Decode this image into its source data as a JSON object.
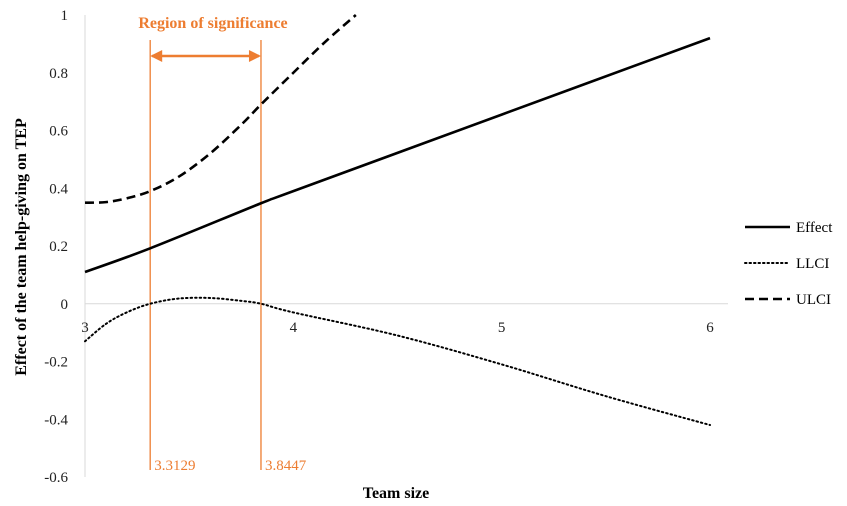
{
  "chart_data": {
    "type": "line",
    "title": "",
    "xlabel": "Team size",
    "ylabel": "Effect of the team help-giving on TEP",
    "xlim": [
      3,
      6
    ],
    "ylim": [
      -0.6,
      1
    ],
    "x_ticks": [
      "3",
      "4",
      "5",
      "6"
    ],
    "y_ticks": [
      "-0.6",
      "-0.4",
      "-0.2",
      "0",
      "0.2",
      "0.4",
      "0.6",
      "0.8",
      "1"
    ],
    "grid": false,
    "legend": "right",
    "series": [
      {
        "name": "Effect",
        "style": "solid",
        "x": [
          3.0,
          3.3129,
          3.8447,
          4.0,
          5.0,
          6.0
        ],
        "y": [
          0.11,
          0.192,
          0.348,
          0.39,
          0.655,
          0.92
        ]
      },
      {
        "name": "LLCI",
        "style": "dotted",
        "x": [
          3.0,
          3.1,
          3.2,
          3.3129,
          3.45,
          3.6,
          3.75,
          3.8447,
          4.0,
          4.5,
          5.0,
          5.5,
          6.0
        ],
        "y": [
          -0.13,
          -0.07,
          -0.03,
          0.0,
          0.018,
          0.02,
          0.01,
          0.0,
          -0.03,
          -0.11,
          -0.21,
          -0.32,
          -0.42
        ]
      },
      {
        "name": "ULCI",
        "style": "dashed",
        "x": [
          3.0,
          3.1,
          3.2,
          3.3129,
          3.45,
          3.6,
          3.75,
          3.8447,
          4.0,
          4.15,
          4.3
        ],
        "y": [
          0.35,
          0.352,
          0.365,
          0.39,
          0.44,
          0.52,
          0.62,
          0.69,
          0.8,
          0.905,
          1.0
        ]
      }
    ],
    "region": {
      "label": "Region of significance",
      "lower_label": "3.3129",
      "upper_label": "3.8447",
      "lower": 3.3129,
      "upper": 3.8447,
      "color": "#ED7D31"
    }
  }
}
